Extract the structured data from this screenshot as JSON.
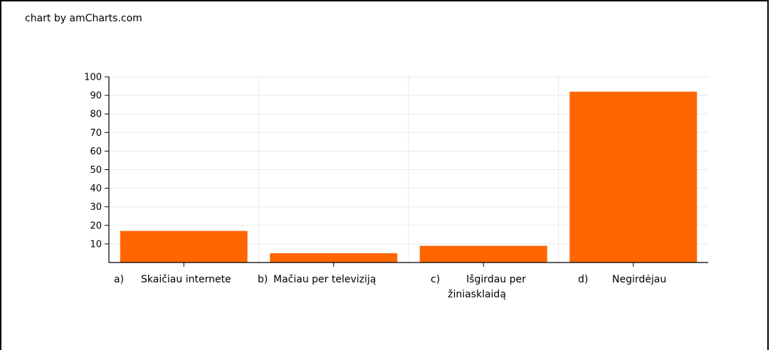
{
  "credit": "chart by amCharts.com",
  "chart_data": {
    "type": "bar",
    "categories": [
      [
        "a)",
        "Skaičiau internete"
      ],
      [
        "b)",
        "Mačiau per televiziją"
      ],
      [
        "c)",
        "Išgirdau per",
        "žiniasklaidą"
      ],
      [
        "d)",
        "Negirdėjau"
      ]
    ],
    "values": [
      17,
      5,
      9,
      92
    ],
    "ylim": [
      0,
      100
    ],
    "yticks": [
      10,
      20,
      30,
      40,
      50,
      60,
      70,
      80,
      90,
      100
    ],
    "grid": true,
    "bar_color": "#ff6600",
    "grid_color": "#e8e8e8",
    "axis_color": "#000000"
  }
}
